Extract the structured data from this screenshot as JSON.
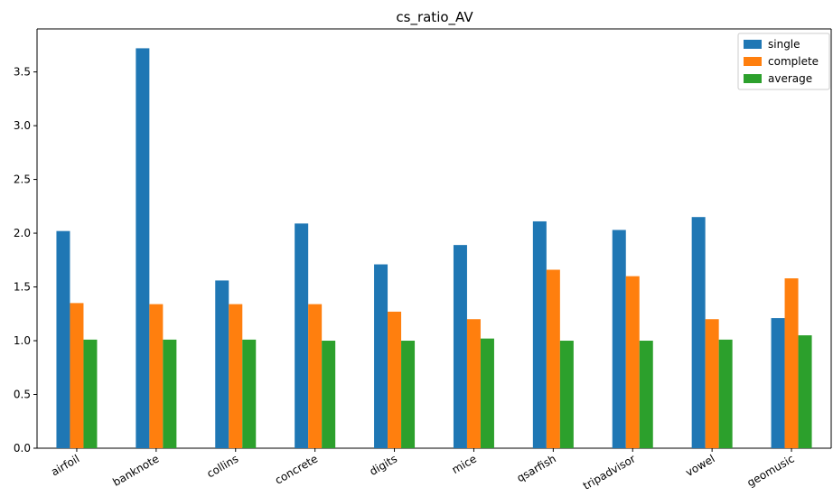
{
  "chart_data": {
    "type": "bar",
    "title": "cs_ratio_AV",
    "xlabel": "",
    "ylabel": "",
    "categories": [
      "airfoil",
      "banknote",
      "collins",
      "concrete",
      "digits",
      "mice",
      "qsarfish",
      "tripadvisor",
      "vowel",
      "geomusic"
    ],
    "series": [
      {
        "name": "single",
        "color": "#1f77b4",
        "values": [
          2.02,
          3.72,
          1.56,
          2.09,
          1.71,
          1.89,
          2.11,
          2.03,
          2.15,
          1.21
        ]
      },
      {
        "name": "complete",
        "color": "#ff7f0e",
        "values": [
          1.35,
          1.34,
          1.34,
          1.34,
          1.27,
          1.2,
          1.66,
          1.6,
          1.2,
          1.58
        ]
      },
      {
        "name": "average",
        "color": "#2ca02c",
        "values": [
          1.01,
          1.01,
          1.01,
          1.0,
          1.0,
          1.02,
          1.0,
          1.0,
          1.01,
          1.05
        ]
      }
    ],
    "ylim": [
      0,
      3.9
    ],
    "yticks": [
      "0.0",
      "0.5",
      "1.0",
      "1.5",
      "2.0",
      "2.5",
      "3.0",
      "3.5"
    ],
    "legend": "top-right",
    "grid": false
  }
}
